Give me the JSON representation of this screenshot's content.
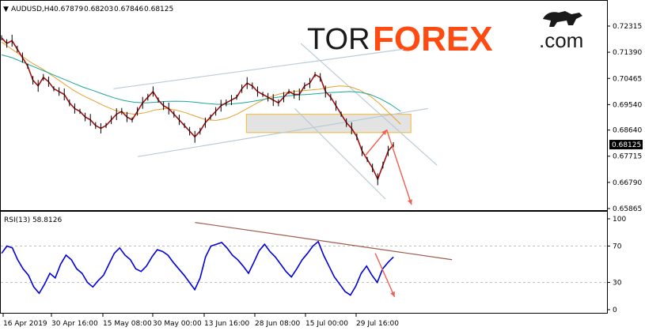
{
  "header": {
    "symbol": "AUDUSD,H4",
    "ohlc": [
      "0.67879",
      "0.68203",
      "0.67846",
      "0.68125"
    ]
  },
  "brand": {
    "tor": "TOR",
    "forex": "FOREX",
    "com": ".com",
    "colors": {
      "accent": "#ff4a12",
      "dark": "#1a1a1a"
    }
  },
  "rsi_panel": {
    "label": "RSI(13) 58.8126"
  },
  "chart_data": [
    {
      "type": "line",
      "name": "price",
      "ylim": [
        0.65865,
        0.72315
      ],
      "y_ticks": [
        "0.72315",
        "0.71390",
        "0.70465",
        "0.69540",
        "0.68640",
        "0.67715",
        "0.66790",
        "0.65865"
      ],
      "current_price": "0.68125",
      "x_ticks": [
        "16 Apr 2019",
        "30 Apr 16:00",
        "15 May 08:00",
        "30 May 00:00",
        "13 Jun 16:00",
        "28 Jun 08:00",
        "15 Jul 00:00",
        "29 Jul 16:00"
      ],
      "close_path": [
        0.719,
        0.717,
        0.718,
        0.715,
        0.712,
        0.709,
        0.704,
        0.702,
        0.705,
        0.7035,
        0.701,
        0.7,
        0.699,
        0.696,
        0.694,
        0.693,
        0.691,
        0.69,
        0.688,
        0.687,
        0.688,
        0.69,
        0.692,
        0.693,
        0.691,
        0.69,
        0.693,
        0.696,
        0.698,
        0.7,
        0.697,
        0.695,
        0.694,
        0.692,
        0.69,
        0.688,
        0.686,
        0.684,
        0.686,
        0.689,
        0.691,
        0.693,
        0.695,
        0.696,
        0.697,
        0.698,
        0.701,
        0.703,
        0.702,
        0.7,
        0.699,
        0.698,
        0.697,
        0.696,
        0.698,
        0.7,
        0.699,
        0.699,
        0.702,
        0.703,
        0.706,
        0.705,
        0.7,
        0.698,
        0.695,
        0.692,
        0.689,
        0.687,
        0.684,
        0.679,
        0.676,
        0.673,
        0.669,
        0.674,
        0.679,
        0.6812
      ],
      "moving_averages": [
        {
          "color": "#e6a02e",
          "values": [
            0.7175,
            0.715,
            0.7125,
            0.71,
            0.708,
            0.7055,
            0.703,
            0.7005,
            0.6985,
            0.6968,
            0.695,
            0.6935,
            0.6925,
            0.692,
            0.6925,
            0.6935,
            0.694,
            0.6935,
            0.6925,
            0.6912,
            0.69,
            0.6898,
            0.6905,
            0.692,
            0.694,
            0.696,
            0.6978,
            0.699,
            0.6998,
            0.7002,
            0.7005,
            0.7008,
            0.7015,
            0.702,
            0.7018,
            0.7005,
            0.6985,
            0.6955,
            0.692,
            0.6885
          ]
        },
        {
          "color": "#1aa79c",
          "values": [
            0.713,
            0.712,
            0.7105,
            0.709,
            0.7075,
            0.706,
            0.7045,
            0.703,
            0.7015,
            0.7003,
            0.699,
            0.6978,
            0.6968,
            0.6962,
            0.696,
            0.6962,
            0.6965,
            0.6966,
            0.6965,
            0.6962,
            0.6958,
            0.6955,
            0.6955,
            0.6958,
            0.6962,
            0.6968,
            0.6975,
            0.698,
            0.6985,
            0.6988,
            0.699,
            0.6993,
            0.6996,
            0.6998,
            0.7,
            0.6998,
            0.699,
            0.6975,
            0.6955,
            0.693
          ]
        }
      ],
      "trend_lines": [
        {
          "color": "#b9cbd8",
          "from": [
            0.185,
            0.701
          ],
          "to": [
            0.665,
            0.715
          ]
        },
        {
          "color": "#b9cbd8",
          "from": [
            0.225,
            0.677
          ],
          "to": [
            0.705,
            0.694
          ]
        },
        {
          "color": "#b9cbd8",
          "from": [
            0.495,
            0.717
          ],
          "to": [
            0.72,
            0.674
          ]
        },
        {
          "color": "#b9cbd8",
          "from": [
            0.485,
            0.694
          ],
          "to": [
            0.635,
            0.662
          ]
        }
      ],
      "resistance_zone": {
        "y_top": 0.692,
        "y_bottom": 0.6855,
        "x_from": 0.405,
        "x_to": 0.677,
        "color": "#f0c050"
      },
      "forecast_arrows": [
        {
          "color": "#f06050",
          "from": [
            0.6,
            0.677
          ],
          "to": [
            0.637,
            0.6865
          ]
        },
        {
          "color": "#f06050",
          "from": [
            0.637,
            0.6865
          ],
          "to": [
            0.678,
            0.66
          ]
        }
      ]
    },
    {
      "type": "line",
      "name": "RSI(13)",
      "ylim": [
        0,
        100
      ],
      "levels": [
        30,
        70
      ],
      "y_ticks": [
        "100",
        "70",
        "30",
        "0"
      ],
      "color": "#0000dd",
      "values": [
        62,
        70,
        68,
        55,
        45,
        38,
        25,
        18,
        28,
        40,
        35,
        50,
        60,
        55,
        45,
        40,
        30,
        25,
        32,
        38,
        50,
        62,
        68,
        60,
        55,
        45,
        42,
        48,
        58,
        66,
        64,
        60,
        52,
        45,
        38,
        30,
        22,
        35,
        58,
        70,
        72,
        74,
        68,
        60,
        55,
        48,
        40,
        52,
        65,
        72,
        64,
        58,
        50,
        42,
        36,
        45,
        55,
        62,
        70,
        75,
        60,
        48,
        36,
        28,
        20,
        16,
        26,
        40,
        48,
        38,
        30,
        45,
        52,
        58
      ],
      "trend_line": {
        "color": "#a05a50",
        "from": [
          0.32,
          96
        ],
        "to": [
          0.745,
          55
        ]
      },
      "forecast_arrows": [
        {
          "color": "#f06050",
          "from": [
            0.618,
            62
          ],
          "to": [
            0.65,
            14
          ]
        }
      ]
    }
  ]
}
